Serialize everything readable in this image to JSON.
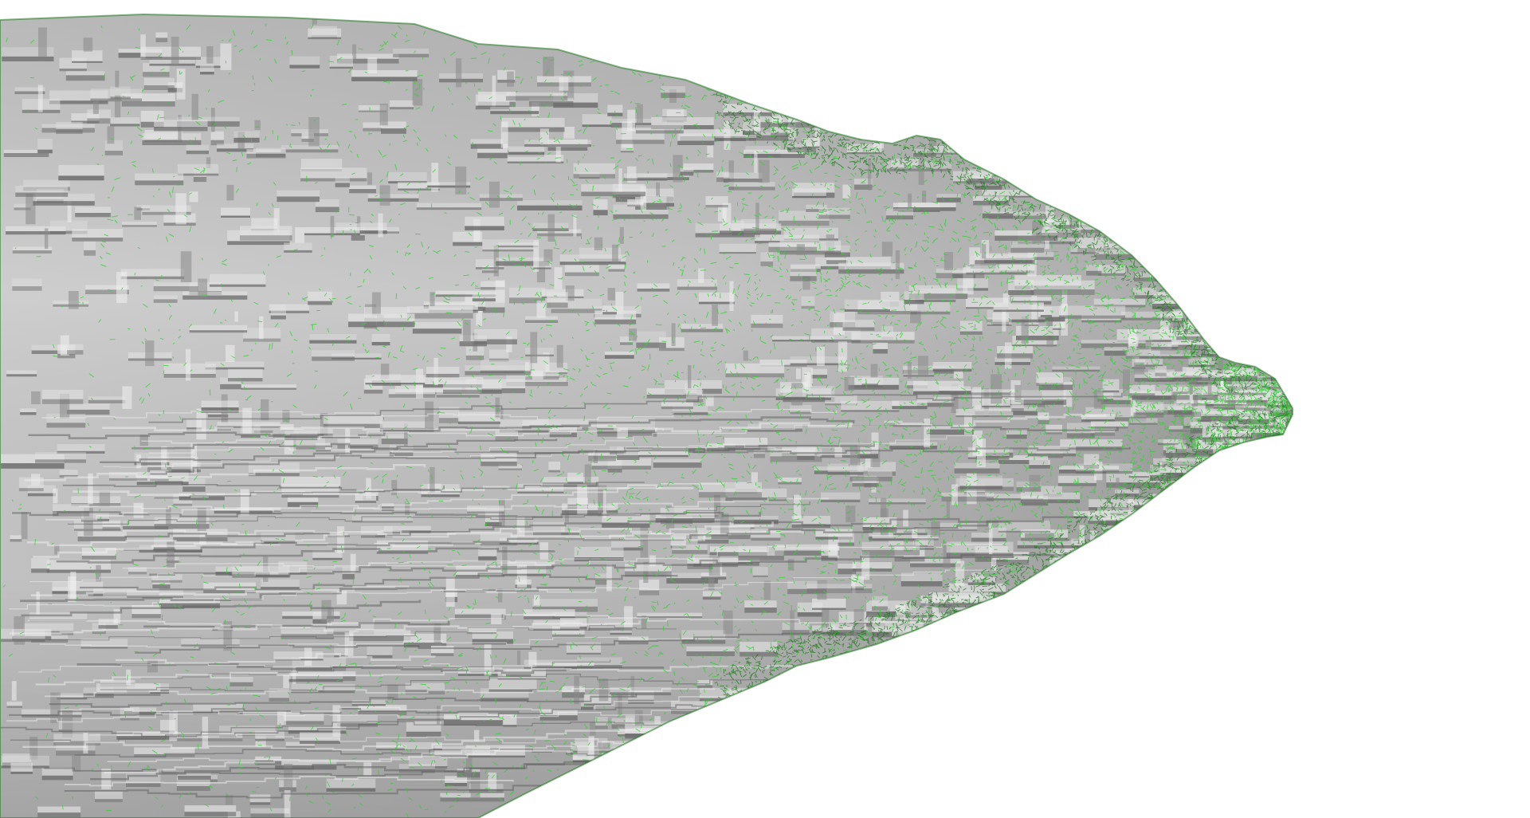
{
  "viewport": {
    "background_color": "#ffffff"
  },
  "mesh": {
    "subject": "voxelized-surface-mesh",
    "surface_color": "#bcbcbc",
    "surface_highlight_color": "#e2e2e2",
    "surface_shadow_color": "#6e6e6e",
    "edge_color": "#2fd12f",
    "edge_dark_color": "#1d7a1d"
  }
}
